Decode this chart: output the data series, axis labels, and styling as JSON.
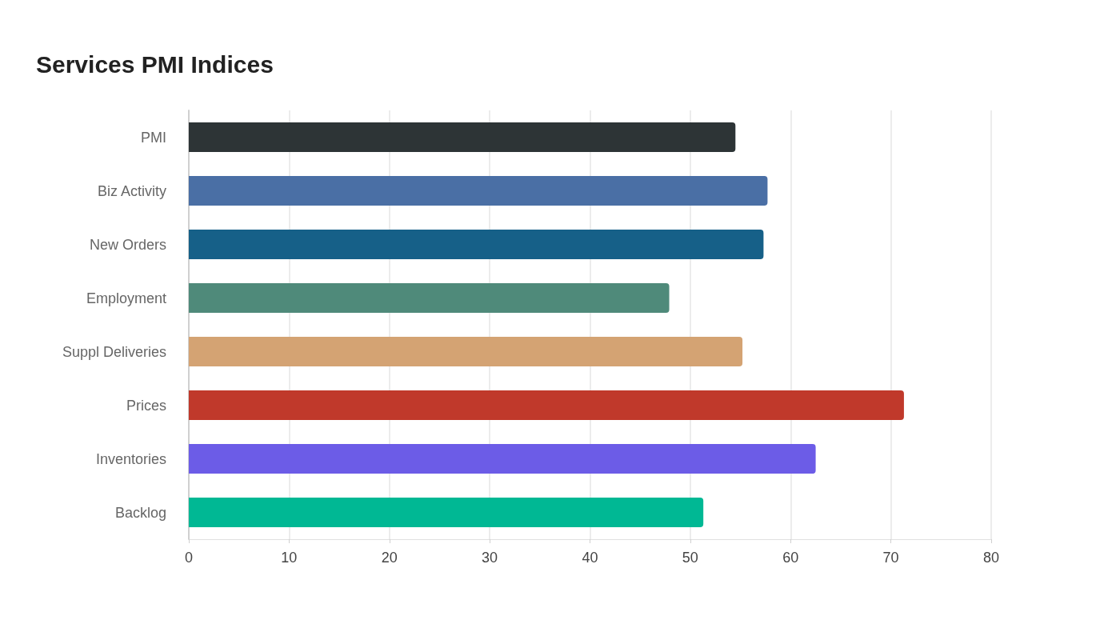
{
  "chart_data": {
    "type": "bar",
    "orientation": "horizontal",
    "title": "Services PMI Indices",
    "categories": [
      "PMI",
      "Biz Activity",
      "New Orders",
      "Employment",
      "Suppl Deliveries",
      "Prices",
      "Inventories",
      "Backlog"
    ],
    "values": [
      54.5,
      57.7,
      57.3,
      47.9,
      55.2,
      71.3,
      62.5,
      51.3
    ],
    "colors": [
      "#2d3436",
      "#4a6fa5",
      "#166088",
      "#4f8a7a",
      "#d4a373",
      "#c0392b",
      "#6c5ce7",
      "#00b894"
    ],
    "xlim": [
      0,
      80
    ],
    "xticks": [
      0,
      10,
      20,
      30,
      40,
      50,
      60,
      70,
      80
    ],
    "grid": "x"
  }
}
